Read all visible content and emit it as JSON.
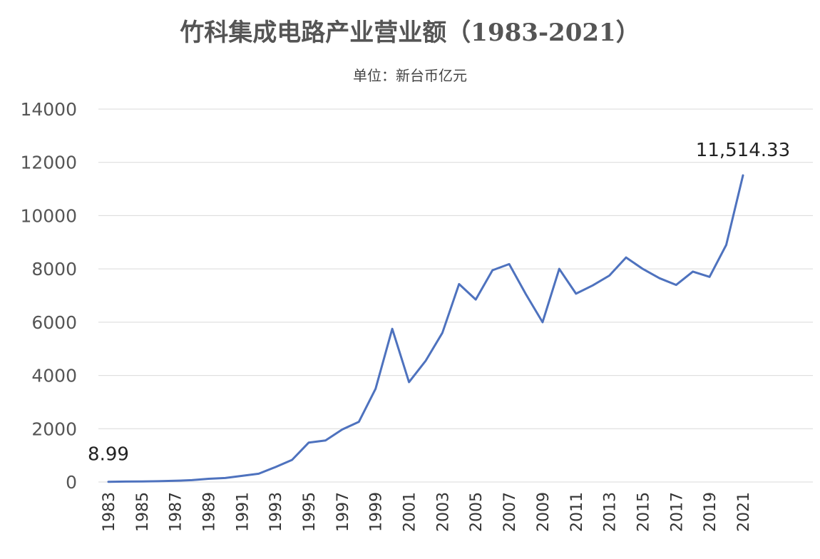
{
  "chart_data": {
    "type": "line",
    "title": "竹科集成电路产业营业额（1983-2021）",
    "subtitle": "单位：新台币亿元",
    "xlabel": "",
    "ylabel": "",
    "ylim": [
      0,
      14000
    ],
    "yticks": [
      "0",
      "2000",
      "4000",
      "6000",
      "8000",
      "10000",
      "12000",
      "14000"
    ],
    "grid": true,
    "legend": "none",
    "line_color": "#4e72be",
    "x": [
      1983,
      1984,
      1985,
      1986,
      1987,
      1988,
      1989,
      1990,
      1991,
      1992,
      1993,
      1994,
      1995,
      1996,
      1997,
      1998,
      1999,
      2000,
      2001,
      2002,
      2003,
      2004,
      2005,
      2006,
      2007,
      2008,
      2009,
      2010,
      2011,
      2012,
      2013,
      2014,
      2015,
      2016,
      2017,
      2018,
      2019,
      2020,
      2021
    ],
    "xticks": [
      "1983",
      "1985",
      "1987",
      "1989",
      "1991",
      "1993",
      "1995",
      "1997",
      "1999",
      "2001",
      "2003",
      "2005",
      "2007",
      "2009",
      "2011",
      "2013",
      "2015",
      "2017",
      "2019",
      "2021"
    ],
    "series": [
      {
        "values": [
          8.99,
          15,
          20,
          30,
          45,
          70,
          120,
          150,
          230,
          310,
          560,
          830,
          1480,
          1560,
          1970,
          2260,
          3500,
          5750,
          3750,
          4550,
          5600,
          7430,
          6850,
          7950,
          8180,
          7050,
          6000,
          8000,
          7070,
          7380,
          7750,
          8430,
          8000,
          7650,
          7400,
          7900,
          7700,
          8900,
          11514.33
        ]
      }
    ],
    "data_labels": [
      {
        "index": 0,
        "text": "8.99"
      },
      {
        "index": 38,
        "text": "11,514.33"
      }
    ]
  }
}
